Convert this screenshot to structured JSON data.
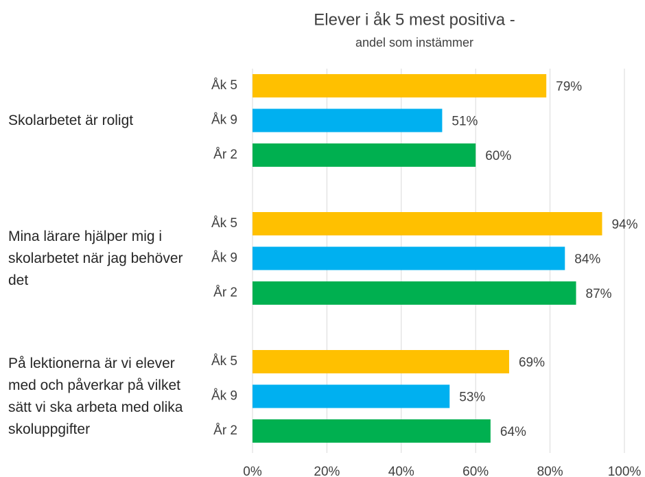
{
  "chart_data": {
    "type": "bar",
    "orientation": "horizontal",
    "title": "Elever i åk 5 mest positiva -",
    "subtitle": "andel som instämmer",
    "categories": [
      "Skolarbetet är roligt",
      "Mina lärare hjälper mig i skolarbetet när jag behöver det",
      "På lektionerna är vi elever med och påverkar på vilket sätt vi ska arbeta med olika skoluppgifter"
    ],
    "series": [
      {
        "name": "Åk 5",
        "color": "#FFC000",
        "values": [
          79,
          94,
          69
        ],
        "value_labels": [
          "79%",
          "94%",
          "69%"
        ]
      },
      {
        "name": "Åk 9",
        "color": "#00B0F0",
        "values": [
          51,
          84,
          53
        ],
        "value_labels": [
          "51%",
          "84%",
          "53%"
        ]
      },
      {
        "name": "År 2",
        "color": "#00B050",
        "values": [
          60,
          87,
          64
        ],
        "value_labels": [
          "60%",
          "87%",
          "64%"
        ]
      }
    ],
    "xlim": [
      0,
      100
    ],
    "xticks": [
      {
        "value": 0,
        "label": "0%"
      },
      {
        "value": 20,
        "label": "20%"
      },
      {
        "value": 40,
        "label": "40%"
      },
      {
        "value": 60,
        "label": "60%"
      },
      {
        "value": 80,
        "label": "80%"
      },
      {
        "value": 100,
        "label": "100%"
      }
    ],
    "grid": true
  }
}
